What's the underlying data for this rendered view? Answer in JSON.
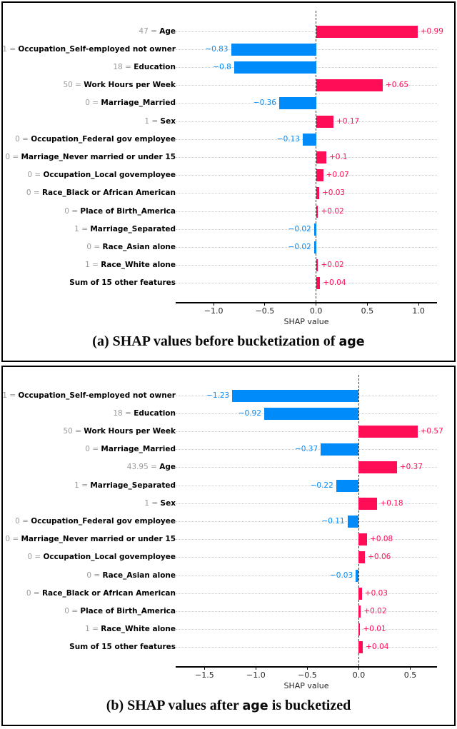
{
  "figure": {
    "colors": {
      "positive_bar": "#ff0d57",
      "negative_bar": "#008bfb",
      "feature_value_gray": "#9a9a9a",
      "feature_name_black": "#000000",
      "gridline_dotted": "#cccccc",
      "zero_line_dashed": "#3d3d3d",
      "axis_black": "#000000",
      "panel_border": "#000000"
    },
    "value_separator": " = "
  },
  "chart_data": [
    {
      "type": "bar",
      "orientation": "horizontal",
      "title": "(a) SHAP values before bucketization of age",
      "caption_pre": "(a) SHAP values before bucketization of ",
      "caption_code": "age",
      "caption_post": "",
      "xlabel": "SHAP value",
      "xlim": [
        -1.37,
        1.18
      ],
      "xticks": [
        -1.0,
        -0.5,
        0.0,
        0.5,
        1.0
      ],
      "xtick_labels": [
        "−1.0",
        "−0.5",
        "0.0",
        "0.5",
        "1.0"
      ],
      "grid": "dotted-horizontal",
      "legend": "none",
      "positive_color": "#ff0d57",
      "negative_color": "#008bfb",
      "rows": [
        {
          "feature_value": "47",
          "feature": "Age",
          "value": 0.99,
          "label": "+0.99"
        },
        {
          "feature_value": "1",
          "feature": "Occupation_Self-employed not owner",
          "value": -0.83,
          "label": "−0.83"
        },
        {
          "feature_value": "18",
          "feature": "Education",
          "value": -0.8,
          "label": "−0.8"
        },
        {
          "feature_value": "50",
          "feature": "Work Hours per Week",
          "value": 0.65,
          "label": "+0.65"
        },
        {
          "feature_value": "0",
          "feature": "Marriage_Married",
          "value": -0.36,
          "label": "−0.36"
        },
        {
          "feature_value": "1",
          "feature": "Sex",
          "value": 0.17,
          "label": "+0.17"
        },
        {
          "feature_value": "0",
          "feature": "Occupation_Federal gov employee",
          "value": -0.13,
          "label": "−0.13"
        },
        {
          "feature_value": "0",
          "feature": "Marriage_Never married or under 15",
          "value": 0.1,
          "label": "+0.1"
        },
        {
          "feature_value": "0",
          "feature": "Occupation_Local govemployee",
          "value": 0.07,
          "label": "+0.07"
        },
        {
          "feature_value": "0",
          "feature": "Race_Black or African American",
          "value": 0.03,
          "label": "+0.03"
        },
        {
          "feature_value": "0",
          "feature": "Place of Birth_America",
          "value": 0.02,
          "label": "+0.02"
        },
        {
          "feature_value": "1",
          "feature": "Marriage_Separated",
          "value": -0.02,
          "label": "−0.02"
        },
        {
          "feature_value": "0",
          "feature": "Race_Asian alone",
          "value": -0.02,
          "label": "−0.02"
        },
        {
          "feature_value": "1",
          "feature": "Race_White alone",
          "value": 0.02,
          "label": "+0.02"
        },
        {
          "feature_value": "",
          "feature": "Sum of 15 other features",
          "value": 0.04,
          "label": "+0.04"
        }
      ]
    },
    {
      "type": "bar",
      "orientation": "horizontal",
      "title": "(b) SHAP values after age is bucketized",
      "caption_pre": "(b) SHAP values after ",
      "caption_code": "age",
      "caption_post": " is bucketized",
      "xlabel": "SHAP value",
      "xlim": [
        -1.78,
        0.76
      ],
      "xticks": [
        -1.5,
        -1.0,
        -0.5,
        0.0,
        0.5
      ],
      "xtick_labels": [
        "−1.5",
        "−1.0",
        "−0.5",
        "0.0",
        "0.5"
      ],
      "grid": "dotted-horizontal",
      "legend": "none",
      "positive_color": "#ff0d57",
      "negative_color": "#008bfb",
      "rows": [
        {
          "feature_value": "1",
          "feature": "Occupation_Self-employed not owner",
          "value": -1.23,
          "label": "−1.23"
        },
        {
          "feature_value": "18",
          "feature": "Education",
          "value": -0.92,
          "label": "−0.92"
        },
        {
          "feature_value": "50",
          "feature": "Work Hours per Week",
          "value": 0.57,
          "label": "+0.57"
        },
        {
          "feature_value": "0",
          "feature": "Marriage_Married",
          "value": -0.37,
          "label": "−0.37"
        },
        {
          "feature_value": "43.95",
          "feature": "Age",
          "value": 0.37,
          "label": "+0.37"
        },
        {
          "feature_value": "1",
          "feature": "Marriage_Separated",
          "value": -0.22,
          "label": "−0.22"
        },
        {
          "feature_value": "1",
          "feature": "Sex",
          "value": 0.18,
          "label": "+0.18"
        },
        {
          "feature_value": "0",
          "feature": "Occupation_Federal gov employee",
          "value": -0.11,
          "label": "−0.11"
        },
        {
          "feature_value": "0",
          "feature": "Marriage_Never married or under 15",
          "value": 0.08,
          "label": "+0.08"
        },
        {
          "feature_value": "0",
          "feature": "Occupation_Local govemployee",
          "value": 0.06,
          "label": "+0.06"
        },
        {
          "feature_value": "0",
          "feature": "Race_Asian alone",
          "value": -0.03,
          "label": "−0.03"
        },
        {
          "feature_value": "0",
          "feature": "Race_Black or African American",
          "value": 0.03,
          "label": "+0.03"
        },
        {
          "feature_value": "0",
          "feature": "Place of Birth_America",
          "value": 0.02,
          "label": "+0.02"
        },
        {
          "feature_value": "1",
          "feature": "Race_White alone",
          "value": 0.01,
          "label": "+0.01"
        },
        {
          "feature_value": "",
          "feature": "Sum of 15 other features",
          "value": 0.04,
          "label": "+0.04"
        }
      ]
    }
  ]
}
